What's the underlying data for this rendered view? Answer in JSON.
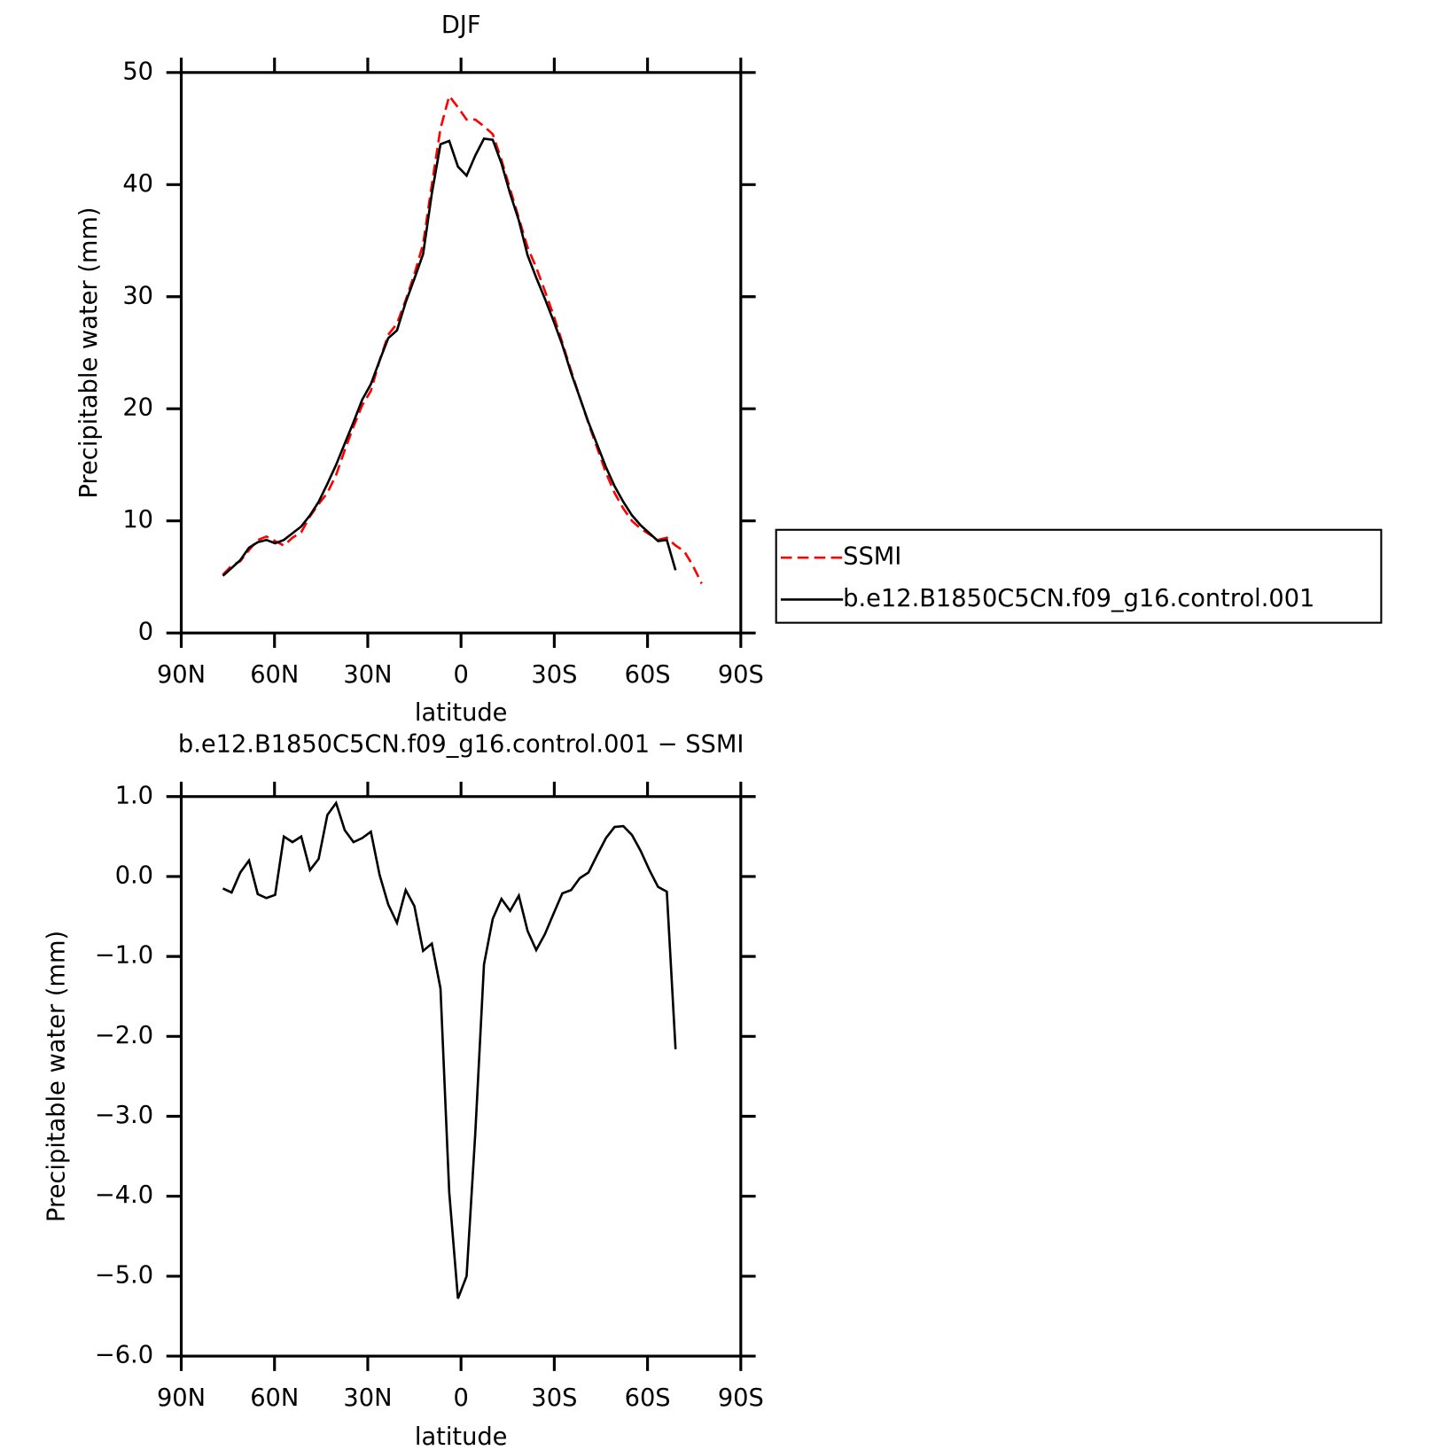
{
  "chart_data": [
    {
      "type": "line",
      "title": "DJF",
      "x_label": "latitude",
      "y_label": "Precipitable water (mm)",
      "x": [
        76.6,
        73.8,
        71,
        68.2,
        65.4,
        62.6,
        59.8,
        57,
        54.2,
        51.4,
        48.6,
        45.8,
        43,
        40.2,
        37.4,
        34.6,
        31.8,
        29,
        26.2,
        23.4,
        20.6,
        17.8,
        15,
        12.2,
        9.4,
        6.6,
        3.8,
        1,
        -1.8,
        -4.6,
        -7.4,
        -10.2,
        -13,
        -15.8,
        -18.6,
        -21.4,
        -24.2,
        -27,
        -29.8,
        -32.6,
        -35.4,
        -38.2,
        -41,
        -43.8,
        -46.6,
        -49.4,
        -52.2,
        -55,
        -57.8,
        -60.6,
        -63.4,
        -66.2,
        -69,
        -71.8,
        -74.6,
        -77.4
      ],
      "series": [
        {
          "name": "SSMI",
          "color": "#ff0000",
          "dash": true,
          "values": [
            5.2,
            6.0,
            6.4,
            7.4,
            8.3,
            8.6,
            8.2,
            7.8,
            8.5,
            9.0,
            10.4,
            11.5,
            12.5,
            14.1,
            16.3,
            18.4,
            20.3,
            21.6,
            24.3,
            26.6,
            27.6,
            29.7,
            32.0,
            34.7,
            40.0,
            45.0,
            47.9,
            46.9,
            45.8,
            45.8,
            45.2,
            44.5,
            42.2,
            39.6,
            37.0,
            34.4,
            32.6,
            30.5,
            28.3,
            25.9,
            23.4,
            21.0,
            18.7,
            16.5,
            14.3,
            12.5,
            11.1,
            10.0,
            9.3,
            8.8,
            8.3,
            8.5,
            7.8,
            7.3,
            6.0,
            4.4
          ]
        },
        {
          "name": "b.e12.B1850C5CN.f09_g16.control.001",
          "color": "#000000",
          "dash": false,
          "values": [
            5.1,
            5.8,
            6.5,
            7.6,
            8.1,
            8.3,
            8.0,
            8.3,
            8.9,
            9.5,
            10.5,
            11.7,
            13.3,
            15.0,
            16.9,
            18.8,
            20.8,
            22.2,
            24.3,
            26.3,
            27.0,
            29.5,
            31.6,
            33.8,
            39.2,
            43.6,
            43.9,
            41.6,
            40.8,
            42.6,
            44.1,
            44.0,
            41.9,
            39.2,
            36.8,
            33.7,
            31.7,
            29.8,
            27.8,
            25.7,
            23.2,
            21.0,
            18.8,
            16.8,
            14.8,
            13.1,
            11.7,
            10.5,
            9.6,
            8.9,
            8.2,
            8.3,
            5.6,
            null,
            null,
            null
          ]
        }
      ],
      "xlim": [
        90,
        -90
      ],
      "xticks": [
        {
          "value": 90,
          "label": "90N"
        },
        {
          "value": 60,
          "label": "60N"
        },
        {
          "value": 30,
          "label": "30N"
        },
        0,
        {
          "value": -30,
          "label": "30S"
        },
        {
          "value": -60,
          "label": "60S"
        },
        {
          "value": -90,
          "label": "90S"
        }
      ],
      "ylim": [
        0,
        50
      ],
      "yticks": [
        0,
        10,
        20,
        30,
        40,
        50
      ],
      "legend": "right"
    },
    {
      "type": "line",
      "title": "b.e12.B1850C5CN.f09_g16.control.001 − SSMI",
      "x_label": "latitude",
      "y_label": "Precipitable water (mm)",
      "x": [
        76.6,
        73.8,
        71,
        68.2,
        65.4,
        62.6,
        59.8,
        57,
        54.2,
        51.4,
        48.6,
        45.8,
        43,
        40.2,
        37.4,
        34.6,
        31.8,
        29,
        26.2,
        23.4,
        20.6,
        17.8,
        15,
        12.2,
        9.4,
        6.6,
        3.8,
        1,
        -1.8,
        -4.6,
        -7.4,
        -10.2,
        -13,
        -15.8,
        -18.6,
        -21.4,
        -24.2,
        -27,
        -29.8,
        -32.6,
        -35.4,
        -38.2,
        -41,
        -43.8,
        -46.6,
        -49.4,
        -52.2,
        -55,
        -57.8,
        -60.6,
        -63.4,
        -66.2,
        -69,
        -71.8,
        -74.6,
        -77.4
      ],
      "series": [
        {
          "color": "#000000",
          "dash": false,
          "values": [
            -0.15,
            -0.2,
            0.05,
            0.2,
            -0.22,
            -0.27,
            -0.23,
            0.5,
            0.43,
            0.5,
            0.08,
            0.22,
            0.77,
            0.92,
            0.58,
            0.43,
            0.48,
            0.56,
            0.02,
            -0.35,
            -0.58,
            -0.17,
            -0.37,
            -0.93,
            -0.84,
            -1.4,
            -3.95,
            -5.28,
            -5.0,
            -3.2,
            -1.1,
            -0.53,
            -0.28,
            -0.43,
            -0.24,
            -0.68,
            -0.92,
            -0.72,
            -0.46,
            -0.21,
            -0.17,
            -0.02,
            0.05,
            0.27,
            0.48,
            0.62,
            0.63,
            0.52,
            0.32,
            0.08,
            -0.13,
            -0.19,
            -2.16,
            null,
            null,
            null
          ]
        }
      ],
      "xlim": [
        90,
        -90
      ],
      "xticks": [
        {
          "value": 90,
          "label": "90N"
        },
        {
          "value": 60,
          "label": "60N"
        },
        {
          "value": 30,
          "label": "30N"
        },
        0,
        {
          "value": -30,
          "label": "30S"
        },
        {
          "value": -60,
          "label": "60S"
        },
        {
          "value": -90,
          "label": "90S"
        }
      ],
      "ylim": [
        -6,
        1
      ],
      "yticks": [
        {
          "value": -6,
          "label": "−6.0"
        },
        {
          "value": -5,
          "label": "−5.0"
        },
        {
          "value": -4,
          "label": "−4.0"
        },
        {
          "value": -3,
          "label": "−3.0"
        },
        {
          "value": -2,
          "label": "−2.0"
        },
        {
          "value": -1,
          "label": "−1.0"
        },
        {
          "value": 0,
          "label": "0.0"
        },
        {
          "value": 1,
          "label": "1.0"
        }
      ]
    }
  ]
}
